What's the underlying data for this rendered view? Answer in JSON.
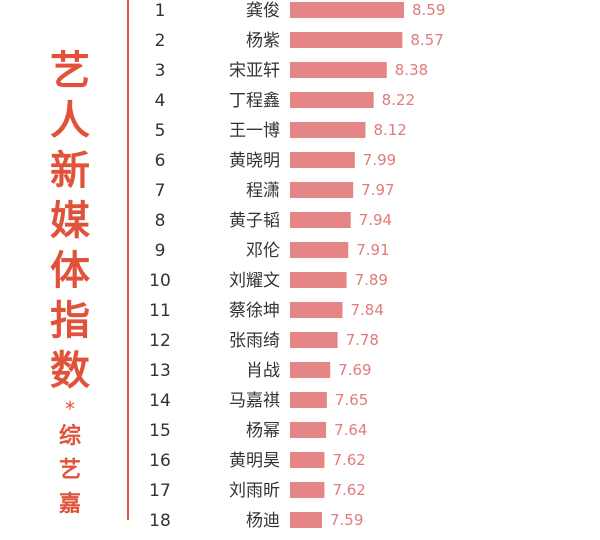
{
  "side_title": {
    "big_chars": [
      "艺",
      "人",
      "新",
      "媒",
      "体",
      "指",
      "数"
    ],
    "star": "*",
    "small_chars": [
      "综",
      "艺",
      "嘉"
    ]
  },
  "colors": {
    "accent": "#e0533a",
    "bar": "#e58585",
    "value_text": "#e27b7b"
  },
  "chart_data": {
    "type": "bar",
    "orientation": "horizontal",
    "title": "",
    "xlabel": "",
    "ylabel": "",
    "xlim": [
      0,
      8.59
    ],
    "grid": false,
    "ranks": [
      "1",
      "2",
      "3",
      "4",
      "5",
      "6",
      "7",
      "8",
      "9",
      "10",
      "11",
      "12",
      "13",
      "14",
      "15",
      "16",
      "17",
      "18"
    ],
    "categories": [
      "龚俊",
      "杨紫",
      "宋亚轩",
      "丁程鑫",
      "王一博",
      "黄晓明",
      "程潇",
      "黄子韬",
      "邓伦",
      "刘耀文",
      "蔡徐坤",
      "张雨绮",
      "肖战",
      "马嘉祺",
      "杨幂",
      "黄明昊",
      "刘雨昕",
      "杨迪"
    ],
    "values": [
      8.59,
      8.57,
      8.38,
      8.22,
      8.12,
      7.99,
      7.97,
      7.94,
      7.91,
      7.89,
      7.84,
      7.78,
      7.69,
      7.65,
      7.64,
      7.62,
      7.62,
      7.59
    ]
  }
}
